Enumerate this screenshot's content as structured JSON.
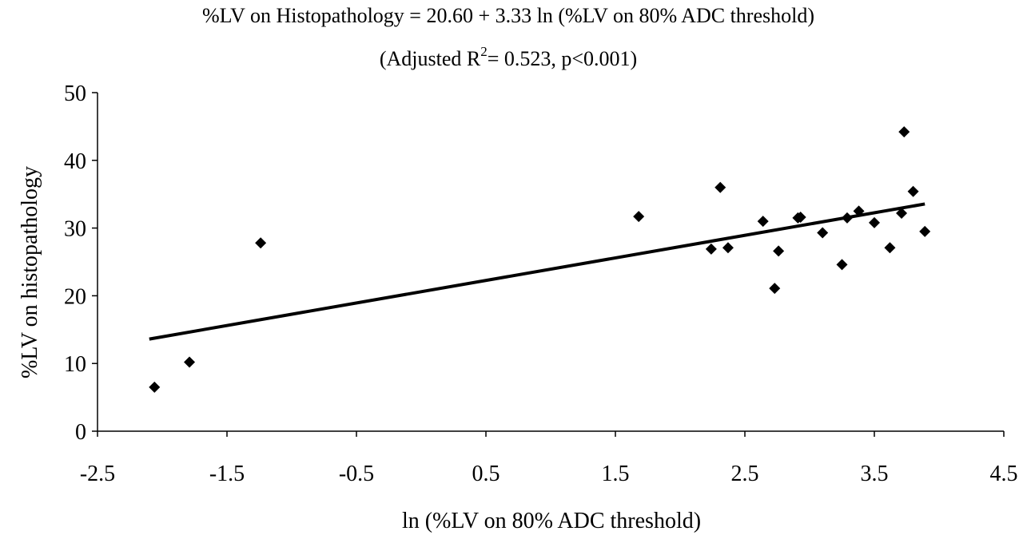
{
  "chart_data": {
    "type": "scatter",
    "title_line1": "%LV on Histopathology = 20.60 + 3.33 ln (%LV on 80% ADC threshold)",
    "title_line2_prefix": "(Adjusted R",
    "title_line2_sup": "2",
    "title_line2_suffix": "= 0.523, p<0.001)",
    "xlabel": "ln (%LV on 80% ADC threshold)",
    "ylabel": "%LV on histopathology",
    "xlim": [
      -2.5,
      4.5
    ],
    "ylim": [
      0,
      50
    ],
    "xticks": [
      -2.5,
      -1.5,
      -0.5,
      0.5,
      1.5,
      2.5,
      3.5,
      4.5
    ],
    "xtick_labels": [
      "-2.5",
      "-1.5",
      "-0.5",
      "0.5",
      "1.5",
      "2.5",
      "3.5",
      "4.5"
    ],
    "yticks": [
      0,
      10,
      20,
      30,
      40,
      50
    ],
    "ytick_labels": [
      "0",
      "10",
      "20",
      "30",
      "40",
      "50"
    ],
    "grid": false,
    "marker": "diamond",
    "marker_color": "#000000",
    "line_color": "#000000",
    "points": [
      {
        "x": -2.06,
        "y": 6.5
      },
      {
        "x": -1.79,
        "y": 10.2
      },
      {
        "x": -1.24,
        "y": 27.8
      },
      {
        "x": 1.68,
        "y": 31.7
      },
      {
        "x": 2.24,
        "y": 26.9
      },
      {
        "x": 2.31,
        "y": 36.0
      },
      {
        "x": 2.37,
        "y": 27.1
      },
      {
        "x": 2.64,
        "y": 31.0
      },
      {
        "x": 2.73,
        "y": 21.1
      },
      {
        "x": 2.76,
        "y": 26.6
      },
      {
        "x": 2.91,
        "y": 31.5
      },
      {
        "x": 2.93,
        "y": 31.6
      },
      {
        "x": 3.1,
        "y": 29.3
      },
      {
        "x": 3.25,
        "y": 24.6
      },
      {
        "x": 3.29,
        "y": 31.5
      },
      {
        "x": 3.38,
        "y": 32.5
      },
      {
        "x": 3.5,
        "y": 30.8
      },
      {
        "x": 3.62,
        "y": 27.1
      },
      {
        "x": 3.71,
        "y": 32.2
      },
      {
        "x": 3.73,
        "y": 44.2
      },
      {
        "x": 3.8,
        "y": 35.4
      },
      {
        "x": 3.89,
        "y": 29.5
      }
    ],
    "fit": {
      "intercept": 20.6,
      "slope": 3.33,
      "x_range": [
        -2.1,
        3.89
      ]
    }
  }
}
